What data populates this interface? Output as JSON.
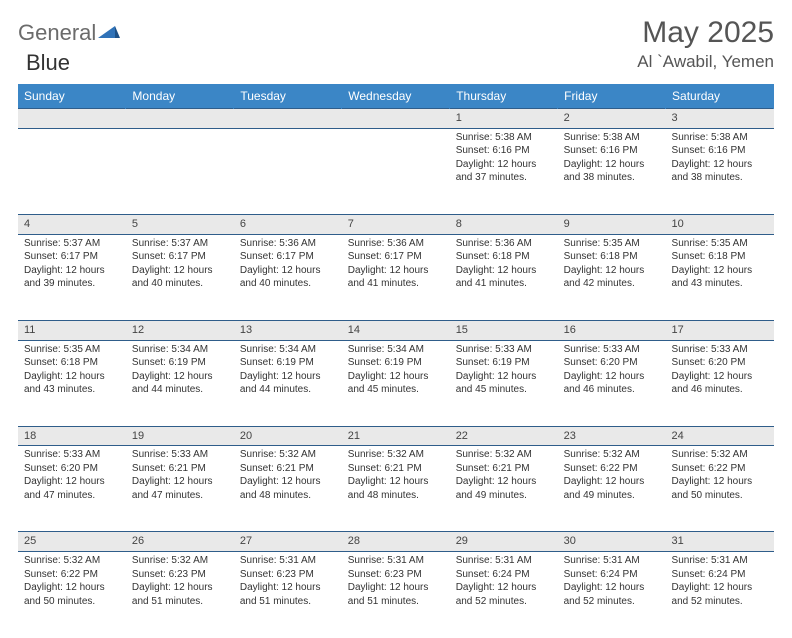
{
  "brand": {
    "part1": "General",
    "part2": "Blue"
  },
  "header": {
    "title": "May 2025",
    "location": "Al `Awabil, Yemen"
  },
  "colors": {
    "headerBar": "#3b86c6",
    "rowBorder": "#2f5d8a",
    "dayBg": "#e9e9e9",
    "brandGray": "#6b6b6b",
    "brandBlue": "#2f72b8"
  },
  "weekdays": [
    "Sunday",
    "Monday",
    "Tuesday",
    "Wednesday",
    "Thursday",
    "Friday",
    "Saturday"
  ],
  "days": [
    {
      "n": 1,
      "sr": "5:38 AM",
      "ss": "6:16 PM",
      "dl": "12 hours and 37 minutes."
    },
    {
      "n": 2,
      "sr": "5:38 AM",
      "ss": "6:16 PM",
      "dl": "12 hours and 38 minutes."
    },
    {
      "n": 3,
      "sr": "5:38 AM",
      "ss": "6:16 PM",
      "dl": "12 hours and 38 minutes."
    },
    {
      "n": 4,
      "sr": "5:37 AM",
      "ss": "6:17 PM",
      "dl": "12 hours and 39 minutes."
    },
    {
      "n": 5,
      "sr": "5:37 AM",
      "ss": "6:17 PM",
      "dl": "12 hours and 40 minutes."
    },
    {
      "n": 6,
      "sr": "5:36 AM",
      "ss": "6:17 PM",
      "dl": "12 hours and 40 minutes."
    },
    {
      "n": 7,
      "sr": "5:36 AM",
      "ss": "6:17 PM",
      "dl": "12 hours and 41 minutes."
    },
    {
      "n": 8,
      "sr": "5:36 AM",
      "ss": "6:18 PM",
      "dl": "12 hours and 41 minutes."
    },
    {
      "n": 9,
      "sr": "5:35 AM",
      "ss": "6:18 PM",
      "dl": "12 hours and 42 minutes."
    },
    {
      "n": 10,
      "sr": "5:35 AM",
      "ss": "6:18 PM",
      "dl": "12 hours and 43 minutes."
    },
    {
      "n": 11,
      "sr": "5:35 AM",
      "ss": "6:18 PM",
      "dl": "12 hours and 43 minutes."
    },
    {
      "n": 12,
      "sr": "5:34 AM",
      "ss": "6:19 PM",
      "dl": "12 hours and 44 minutes."
    },
    {
      "n": 13,
      "sr": "5:34 AM",
      "ss": "6:19 PM",
      "dl": "12 hours and 44 minutes."
    },
    {
      "n": 14,
      "sr": "5:34 AM",
      "ss": "6:19 PM",
      "dl": "12 hours and 45 minutes."
    },
    {
      "n": 15,
      "sr": "5:33 AM",
      "ss": "6:19 PM",
      "dl": "12 hours and 45 minutes."
    },
    {
      "n": 16,
      "sr": "5:33 AM",
      "ss": "6:20 PM",
      "dl": "12 hours and 46 minutes."
    },
    {
      "n": 17,
      "sr": "5:33 AM",
      "ss": "6:20 PM",
      "dl": "12 hours and 46 minutes."
    },
    {
      "n": 18,
      "sr": "5:33 AM",
      "ss": "6:20 PM",
      "dl": "12 hours and 47 minutes."
    },
    {
      "n": 19,
      "sr": "5:33 AM",
      "ss": "6:21 PM",
      "dl": "12 hours and 47 minutes."
    },
    {
      "n": 20,
      "sr": "5:32 AM",
      "ss": "6:21 PM",
      "dl": "12 hours and 48 minutes."
    },
    {
      "n": 21,
      "sr": "5:32 AM",
      "ss": "6:21 PM",
      "dl": "12 hours and 48 minutes."
    },
    {
      "n": 22,
      "sr": "5:32 AM",
      "ss": "6:21 PM",
      "dl": "12 hours and 49 minutes."
    },
    {
      "n": 23,
      "sr": "5:32 AM",
      "ss": "6:22 PM",
      "dl": "12 hours and 49 minutes."
    },
    {
      "n": 24,
      "sr": "5:32 AM",
      "ss": "6:22 PM",
      "dl": "12 hours and 50 minutes."
    },
    {
      "n": 25,
      "sr": "5:32 AM",
      "ss": "6:22 PM",
      "dl": "12 hours and 50 minutes."
    },
    {
      "n": 26,
      "sr": "5:32 AM",
      "ss": "6:23 PM",
      "dl": "12 hours and 51 minutes."
    },
    {
      "n": 27,
      "sr": "5:31 AM",
      "ss": "6:23 PM",
      "dl": "12 hours and 51 minutes."
    },
    {
      "n": 28,
      "sr": "5:31 AM",
      "ss": "6:23 PM",
      "dl": "12 hours and 51 minutes."
    },
    {
      "n": 29,
      "sr": "5:31 AM",
      "ss": "6:24 PM",
      "dl": "12 hours and 52 minutes."
    },
    {
      "n": 30,
      "sr": "5:31 AM",
      "ss": "6:24 PM",
      "dl": "12 hours and 52 minutes."
    },
    {
      "n": 31,
      "sr": "5:31 AM",
      "ss": "6:24 PM",
      "dl": "12 hours and 52 minutes."
    }
  ],
  "labels": {
    "sunrise": "Sunrise: ",
    "sunset": "Sunset: ",
    "daylight": "Daylight: "
  },
  "startOffset": 4
}
